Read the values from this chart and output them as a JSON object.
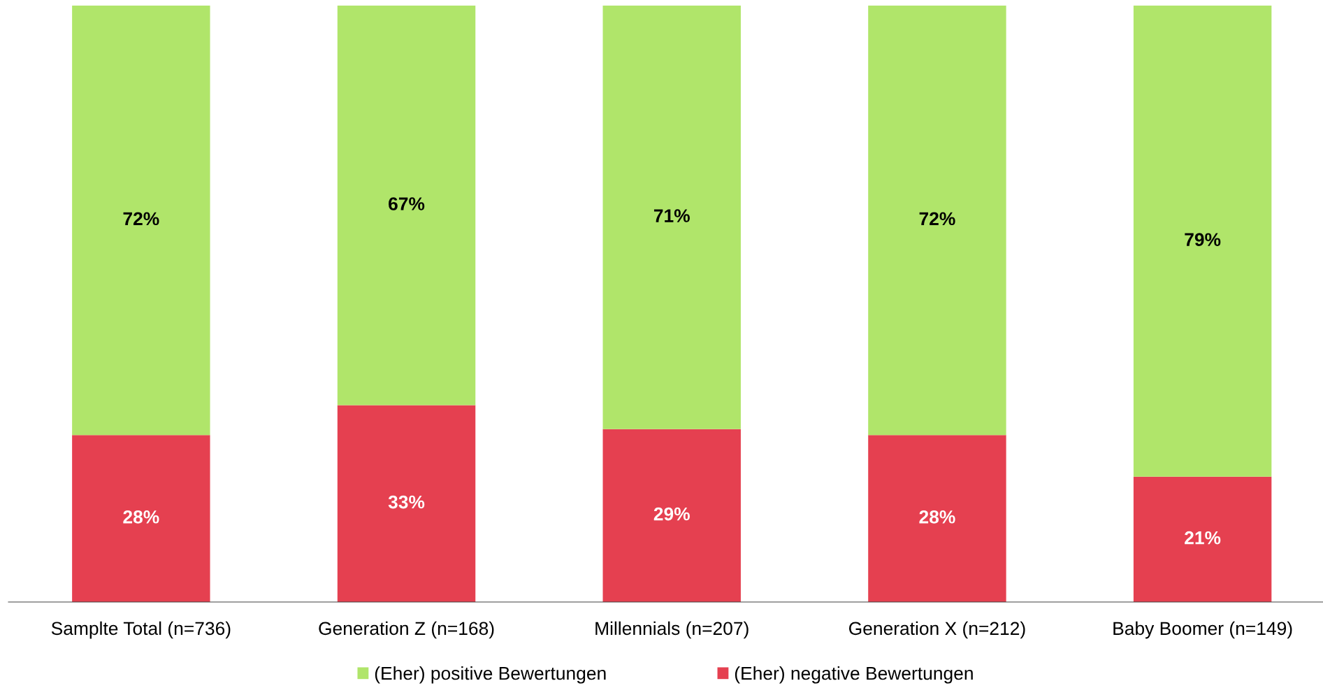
{
  "chart_data": {
    "type": "bar",
    "stacked": true,
    "legend": "bottom",
    "grid": false,
    "categories": [
      "Samplte Total (n=736)",
      "Generation Z (n=168)",
      "Millennials (n=207)",
      "Generation X (n=212)",
      "Baby Boomer (n=149)"
    ],
    "series": [
      {
        "name": "(Eher) negative Bewertungen",
        "color": "#e54050",
        "values": [
          28,
          33,
          29,
          28,
          21
        ],
        "value_labels": [
          "28%",
          "33%",
          "29%",
          "28%",
          "21%"
        ]
      },
      {
        "name": "(Eher) positive Bewertungen",
        "color": "#b0e56a",
        "values": [
          72,
          67,
          71,
          72,
          79
        ],
        "value_labels": [
          "72%",
          "67%",
          "71%",
          "72%",
          "79%"
        ]
      }
    ]
  }
}
